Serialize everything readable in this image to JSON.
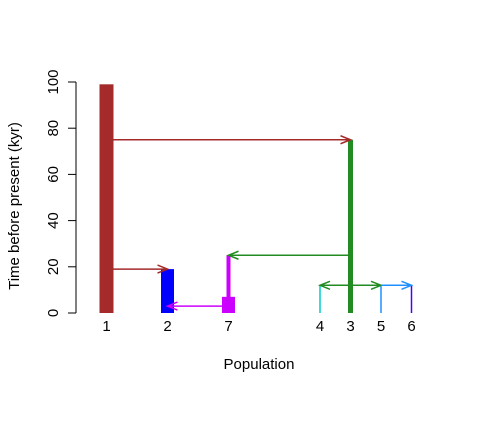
{
  "chart_data": {
    "type": "diagram",
    "title": "",
    "xlabel": "Population",
    "ylabel": "Time before present (kyr)",
    "ylim": [
      0,
      100
    ],
    "yticks": [
      0,
      20,
      40,
      60,
      80,
      100
    ],
    "grid": false,
    "legend": "none",
    "populations": [
      {
        "label": "1",
        "x": 1,
        "top": 99,
        "width": "thick",
        "color": "#a52a2a"
      },
      {
        "label": "2",
        "x": 3,
        "top": 19,
        "width": "medium",
        "color": "#0000ff"
      },
      {
        "label": "7",
        "x": 5,
        "top": 25,
        "width": "thin",
        "color": "#cc00ff",
        "base_top": 7,
        "base_width": "medium"
      },
      {
        "label": "4",
        "x": 8,
        "top": 12,
        "width": "hair",
        "color": "#00cccc"
      },
      {
        "label": "3",
        "x": 9,
        "top": 75,
        "width": "medium-thin",
        "color": "#228b22",
        "base_top": 12,
        "base_width": "hair"
      },
      {
        "label": "5",
        "x": 10,
        "top": 12,
        "width": "hair",
        "color": "#1e90ff"
      },
      {
        "label": "6",
        "x": 11,
        "top": 12,
        "width": "hair",
        "color": "#4b00ff"
      }
    ],
    "migrations": [
      {
        "from": "1",
        "to": "3",
        "time": 75,
        "color": "#a52a2a"
      },
      {
        "from": "1",
        "to": "2",
        "time": 19,
        "color": "#a52a2a"
      },
      {
        "from": "7",
        "to": "2",
        "time": 3,
        "color": "#cc00ff"
      },
      {
        "from": "3",
        "to": "7",
        "time": 25,
        "color": "#228b22"
      },
      {
        "from": "3",
        "to": "4",
        "time": 12,
        "color": "#228b22"
      },
      {
        "from": "3",
        "to": "5",
        "time": 12,
        "color": "#228b22"
      },
      {
        "from": "5",
        "to": "6",
        "time": 12,
        "color": "#1e90ff"
      }
    ]
  }
}
